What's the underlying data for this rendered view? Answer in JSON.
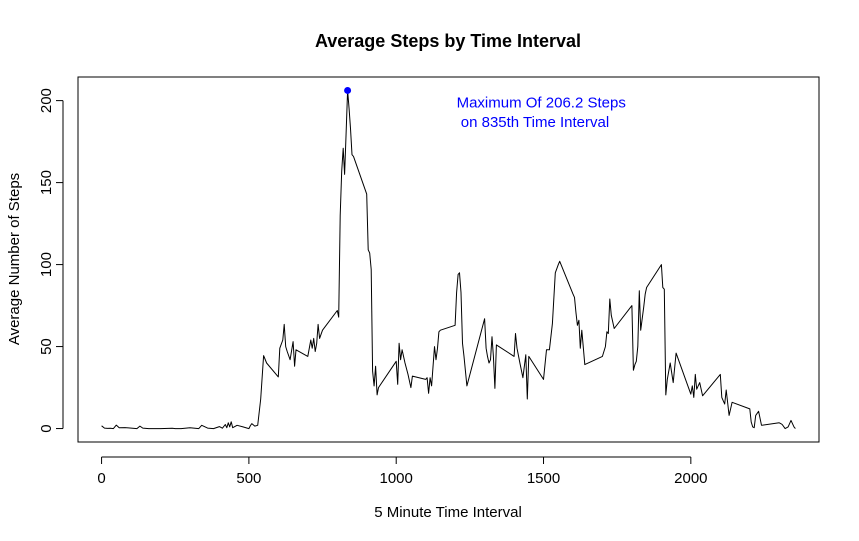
{
  "chart_data": {
    "type": "line",
    "title": "Average Steps by Time Interval",
    "xlabel": "5 Minute Time Interval",
    "ylabel": "Average Number of Steps",
    "xlim": [
      -80,
      2435
    ],
    "ylim": [
      -8.2,
      214.4
    ],
    "xticks": [
      0,
      500,
      1000,
      1500,
      2000
    ],
    "yticks": [
      0,
      50,
      100,
      150,
      200
    ],
    "grid": false,
    "line_color": "#000000",
    "highlight_color": "#0000ff",
    "max_point": {
      "x": 835,
      "y": 206.2
    },
    "annotation": {
      "line1": "Maximum Of 206.2 Steps",
      "line2": " on 835th Time Interval",
      "x": 1205,
      "y1": 199,
      "y2": 187
    },
    "series": [
      {
        "x": [
          0,
          10,
          20,
          30,
          40,
          50,
          60,
          80,
          120,
          130,
          140,
          160,
          200,
          240,
          250,
          270,
          300,
          330,
          340,
          360,
          380,
          400,
          410,
          420,
          425,
          430,
          435,
          440,
          445,
          460,
          480,
          500,
          505,
          510,
          520,
          530,
          540,
          550,
          560,
          600,
          605,
          615,
          620,
          625,
          630,
          640,
          650,
          655,
          660,
          700,
          710,
          715,
          720,
          725,
          730,
          735,
          740,
          750,
          800,
          805,
          810,
          815,
          820,
          825,
          830,
          835,
          840,
          845,
          850,
          855,
          900,
          905,
          910,
          915,
          920,
          925,
          930,
          935,
          940,
          1000,
          1005,
          1010,
          1015,
          1020,
          1030,
          1040,
          1050,
          1055,
          1100,
          1105,
          1110,
          1115,
          1120,
          1130,
          1135,
          1140,
          1145,
          1150,
          1200,
          1205,
          1210,
          1215,
          1220,
          1225,
          1230,
          1240,
          1300,
          1305,
          1310,
          1315,
          1320,
          1325,
          1330,
          1335,
          1340,
          1400,
          1405,
          1410,
          1420,
          1430,
          1440,
          1445,
          1450,
          1500,
          1505,
          1510,
          1520,
          1530,
          1540,
          1550,
          1555,
          1600,
          1605,
          1610,
          1615,
          1620,
          1625,
          1630,
          1640,
          1700,
          1705,
          1710,
          1715,
          1720,
          1725,
          1730,
          1740,
          1800,
          1805,
          1810,
          1815,
          1820,
          1825,
          1830,
          1840,
          1845,
          1850,
          1900,
          1905,
          1910,
          1915,
          1920,
          1930,
          1940,
          1950,
          2000,
          2005,
          2010,
          2015,
          2020,
          2030,
          2040,
          2100,
          2105,
          2110,
          2115,
          2120,
          2130,
          2140,
          2200,
          2205,
          2210,
          2215,
          2220,
          2230,
          2240,
          2300,
          2305,
          2310,
          2320,
          2330,
          2340,
          2350,
          2355
        ],
        "y": [
          1.7,
          0.3,
          0.1,
          0.2,
          0.0,
          2.1,
          0.5,
          0.6,
          0.0,
          1.5,
          0.3,
          0.0,
          0.0,
          0.2,
          0.0,
          0.0,
          0.5,
          0.0,
          2.0,
          0.3,
          0.0,
          1.2,
          0.2,
          2.5,
          0.5,
          3.5,
          1.0,
          4.1,
          0.5,
          2.0,
          1.0,
          0.0,
          1.8,
          3.0,
          1.5,
          2.0,
          18.0,
          44.5,
          40.0,
          31.5,
          49.0,
          54.0,
          63.5,
          50.0,
          47.0,
          42.0,
          53.0,
          38.0,
          48.0,
          44.0,
          54.0,
          49.0,
          55.0,
          47.0,
          52.0,
          63.5,
          55.0,
          60.0,
          72.0,
          68.0,
          130.0,
          157.0,
          171.0,
          155.0,
          180.0,
          206.2,
          195.0,
          183.0,
          167.0,
          166.0,
          143.0,
          109.0,
          107.0,
          97.0,
          35.0,
          26.0,
          38.0,
          20.5,
          25.0,
          41.0,
          27.0,
          52.0,
          42.0,
          48.0,
          40.0,
          33.0,
          25.0,
          32.0,
          30.0,
          31.0,
          21.5,
          31.0,
          26.0,
          50.0,
          42.0,
          49.0,
          59.0,
          60.0,
          63.0,
          83.0,
          94.0,
          95.0,
          83.0,
          52.0,
          44.0,
          26.0,
          67.0,
          49.0,
          44.0,
          40.0,
          42.0,
          56.0,
          44.0,
          24.5,
          51.0,
          44.0,
          58.0,
          49.0,
          40.0,
          31.0,
          45.0,
          18.0,
          44.0,
          30.0,
          39.0,
          48.0,
          48.0,
          64.0,
          95.0,
          100.0,
          102.0,
          82.0,
          80.0,
          71.0,
          63.0,
          66.0,
          49.0,
          60.0,
          39.0,
          44.0,
          47.0,
          50.0,
          59.0,
          58.0,
          79.0,
          69.0,
          61.0,
          75.0,
          35.5,
          39.0,
          41.0,
          50.0,
          84.0,
          60.0,
          74.0,
          82.0,
          86.0,
          100.0,
          86.0,
          85.0,
          20.5,
          30.0,
          40.0,
          28.0,
          46.0,
          21.0,
          26.0,
          19.0,
          33.0,
          24.0,
          28.0,
          20.0,
          33.0,
          19.0,
          17.0,
          15.0,
          23.5,
          8.0,
          16.0,
          12.0,
          4.0,
          1.0,
          0.5,
          8.0,
          10.5,
          2.0,
          3.5,
          3.0,
          2.5,
          0.0,
          1.0,
          5.0,
          1.0,
          0.0
        ]
      }
    ]
  }
}
